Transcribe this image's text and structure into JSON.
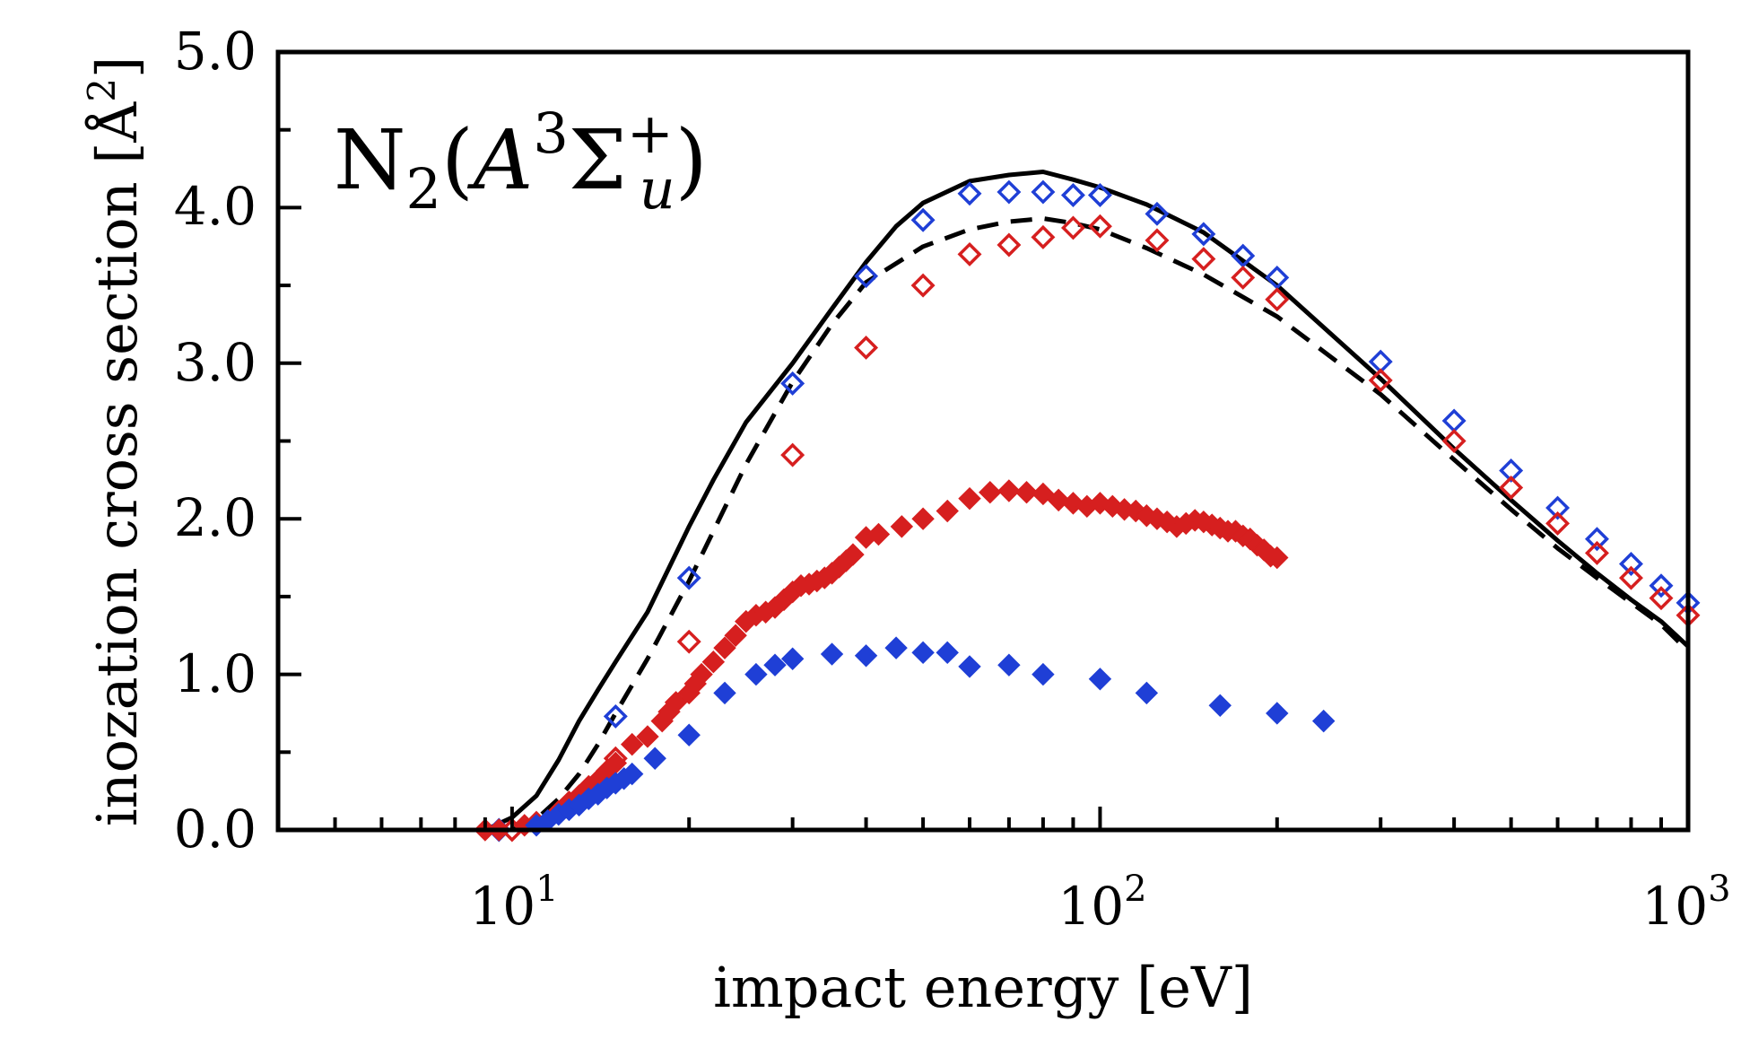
{
  "chart_data": {
    "type": "scatter",
    "title": "",
    "annotation": {
      "molecule": "N",
      "molecule_sub": "2",
      "open": "(",
      "state_letter": "A",
      "state_sup": "3",
      "sigma": "Σ",
      "sigma_sup": "+",
      "sigma_sub": "u",
      "close": ")"
    },
    "xlabel": "impact energy [eV]",
    "ylabel": "inozation cross section [Å²]",
    "ylabel_parts": {
      "text": "inozation cross section [Å",
      "sup": "2",
      "close": "]"
    },
    "xscale": "log",
    "xlim": [
      4,
      1000
    ],
    "ylim": [
      0,
      5
    ],
    "grid": false,
    "x_major_ticks": [
      {
        "value": 10,
        "base": "10",
        "exp": "1"
      },
      {
        "value": 100,
        "base": "10",
        "exp": "2"
      },
      {
        "value": 1000,
        "base": "10",
        "exp": "3"
      }
    ],
    "y_ticks": [
      {
        "value": 0,
        "label": "0.0"
      },
      {
        "value": 1,
        "label": "1.0"
      },
      {
        "value": 2,
        "label": "2.0"
      },
      {
        "value": 3,
        "label": "3.0"
      },
      {
        "value": 4,
        "label": "4.0"
      },
      {
        "value": 5,
        "label": "5.0"
      }
    ],
    "series": [
      {
        "name": "theory (solid)",
        "style": "solid-line",
        "color": "#000000",
        "x": [
          9,
          10,
          11,
          12,
          13,
          14,
          15,
          17,
          20,
          22,
          25,
          30,
          35,
          40,
          45,
          50,
          60,
          70,
          80,
          90,
          100,
          120,
          150,
          200,
          300,
          400,
          500,
          600,
          700,
          800,
          900,
          1000
        ],
        "y": [
          0.0,
          0.08,
          0.22,
          0.45,
          0.7,
          0.9,
          1.08,
          1.4,
          1.95,
          2.25,
          2.62,
          3.0,
          3.35,
          3.65,
          3.88,
          4.03,
          4.17,
          4.21,
          4.23,
          4.18,
          4.13,
          4.02,
          3.84,
          3.5,
          2.9,
          2.45,
          2.12,
          1.86,
          1.65,
          1.48,
          1.34,
          1.18
        ]
      },
      {
        "name": "theory (dashed)",
        "style": "dashed-line",
        "color": "#000000",
        "x": [
          10,
          11,
          12,
          13,
          14,
          15,
          17,
          20,
          25,
          30,
          35,
          40,
          50,
          60,
          70,
          80,
          90,
          100,
          120,
          150,
          200,
          300,
          400,
          500,
          600,
          700,
          800,
          900,
          1000
        ],
        "y": [
          0.0,
          0.07,
          0.2,
          0.36,
          0.55,
          0.75,
          1.1,
          1.6,
          2.35,
          2.88,
          3.25,
          3.52,
          3.75,
          3.86,
          3.91,
          3.93,
          3.9,
          3.86,
          3.74,
          3.57,
          3.3,
          2.8,
          2.38,
          2.06,
          1.81,
          1.62,
          1.46,
          1.32,
          1.15
        ]
      },
      {
        "name": "blue open diamonds",
        "style": "open-diamond",
        "color": "#1f3fd6",
        "x": [
          9.5,
          15,
          20,
          30,
          40,
          50,
          60,
          70,
          80,
          90,
          100,
          125,
          150,
          175,
          200,
          300,
          400,
          500,
          600,
          700,
          800,
          900,
          1000
        ],
        "y": [
          0.0,
          0.73,
          1.62,
          2.87,
          3.56,
          3.92,
          4.09,
          4.1,
          4.1,
          4.08,
          4.08,
          3.96,
          3.83,
          3.69,
          3.55,
          3.01,
          2.63,
          2.31,
          2.07,
          1.87,
          1.71,
          1.57,
          1.46
        ]
      },
      {
        "name": "red open diamonds",
        "style": "open-diamond",
        "color": "#d61f1f",
        "x": [
          10,
          15,
          20,
          30,
          40,
          50,
          60,
          70,
          80,
          90,
          100,
          125,
          150,
          175,
          200,
          300,
          400,
          500,
          600,
          700,
          800,
          900,
          1000
        ],
        "y": [
          0.0,
          0.46,
          1.21,
          2.41,
          3.1,
          3.5,
          3.7,
          3.76,
          3.81,
          3.87,
          3.88,
          3.79,
          3.67,
          3.55,
          3.41,
          2.89,
          2.5,
          2.2,
          1.97,
          1.78,
          1.62,
          1.49,
          1.38
        ]
      },
      {
        "name": "red filled diamonds",
        "style": "filled-diamond",
        "color": "#d61f1f",
        "x": [
          9,
          9.5,
          10.5,
          11,
          12,
          12.5,
          13,
          13.5,
          14,
          14.5,
          15,
          16,
          17,
          18,
          18.5,
          19,
          20,
          20.5,
          21,
          22,
          23,
          24,
          25,
          26,
          27,
          28,
          29,
          30,
          31,
          32,
          33,
          34,
          35,
          36,
          37,
          38,
          40,
          42,
          46,
          50,
          55,
          60,
          65,
          70,
          75,
          80,
          85,
          90,
          95,
          100,
          105,
          110,
          115,
          120,
          125,
          130,
          135,
          140,
          145,
          150,
          155,
          160,
          165,
          170,
          175,
          180,
          185,
          190,
          195,
          200
        ],
        "y": [
          0.0,
          0.0,
          0.03,
          0.05,
          0.12,
          0.18,
          0.22,
          0.28,
          0.32,
          0.38,
          0.43,
          0.55,
          0.6,
          0.7,
          0.76,
          0.82,
          0.88,
          0.94,
          1.0,
          1.08,
          1.17,
          1.25,
          1.34,
          1.38,
          1.4,
          1.43,
          1.48,
          1.53,
          1.57,
          1.58,
          1.6,
          1.62,
          1.65,
          1.69,
          1.73,
          1.77,
          1.88,
          1.9,
          1.95,
          2.0,
          2.05,
          2.13,
          2.17,
          2.18,
          2.17,
          2.16,
          2.12,
          2.1,
          2.08,
          2.1,
          2.08,
          2.06,
          2.05,
          2.02,
          2.0,
          1.98,
          1.95,
          1.97,
          1.99,
          1.98,
          1.96,
          1.94,
          1.92,
          1.92,
          1.89,
          1.87,
          1.83,
          1.8,
          1.76,
          1.75
        ]
      },
      {
        "name": "blue filled diamonds",
        "style": "filled-diamond",
        "color": "#1f3fd6",
        "x": [
          11,
          11.5,
          12,
          12.5,
          13,
          13.5,
          14,
          14.5,
          15,
          15.5,
          16,
          17.5,
          20,
          23,
          26,
          28,
          30,
          35,
          40,
          45,
          50,
          55,
          60,
          70,
          80,
          100,
          120,
          160,
          200,
          240
        ],
        "y": [
          0.03,
          0.06,
          0.1,
          0.13,
          0.16,
          0.2,
          0.23,
          0.27,
          0.3,
          0.33,
          0.36,
          0.46,
          0.61,
          0.88,
          1.0,
          1.06,
          1.1,
          1.13,
          1.12,
          1.17,
          1.14,
          1.14,
          1.05,
          1.06,
          1.0,
          0.97,
          0.88,
          0.8,
          0.75,
          0.7
        ]
      }
    ]
  }
}
